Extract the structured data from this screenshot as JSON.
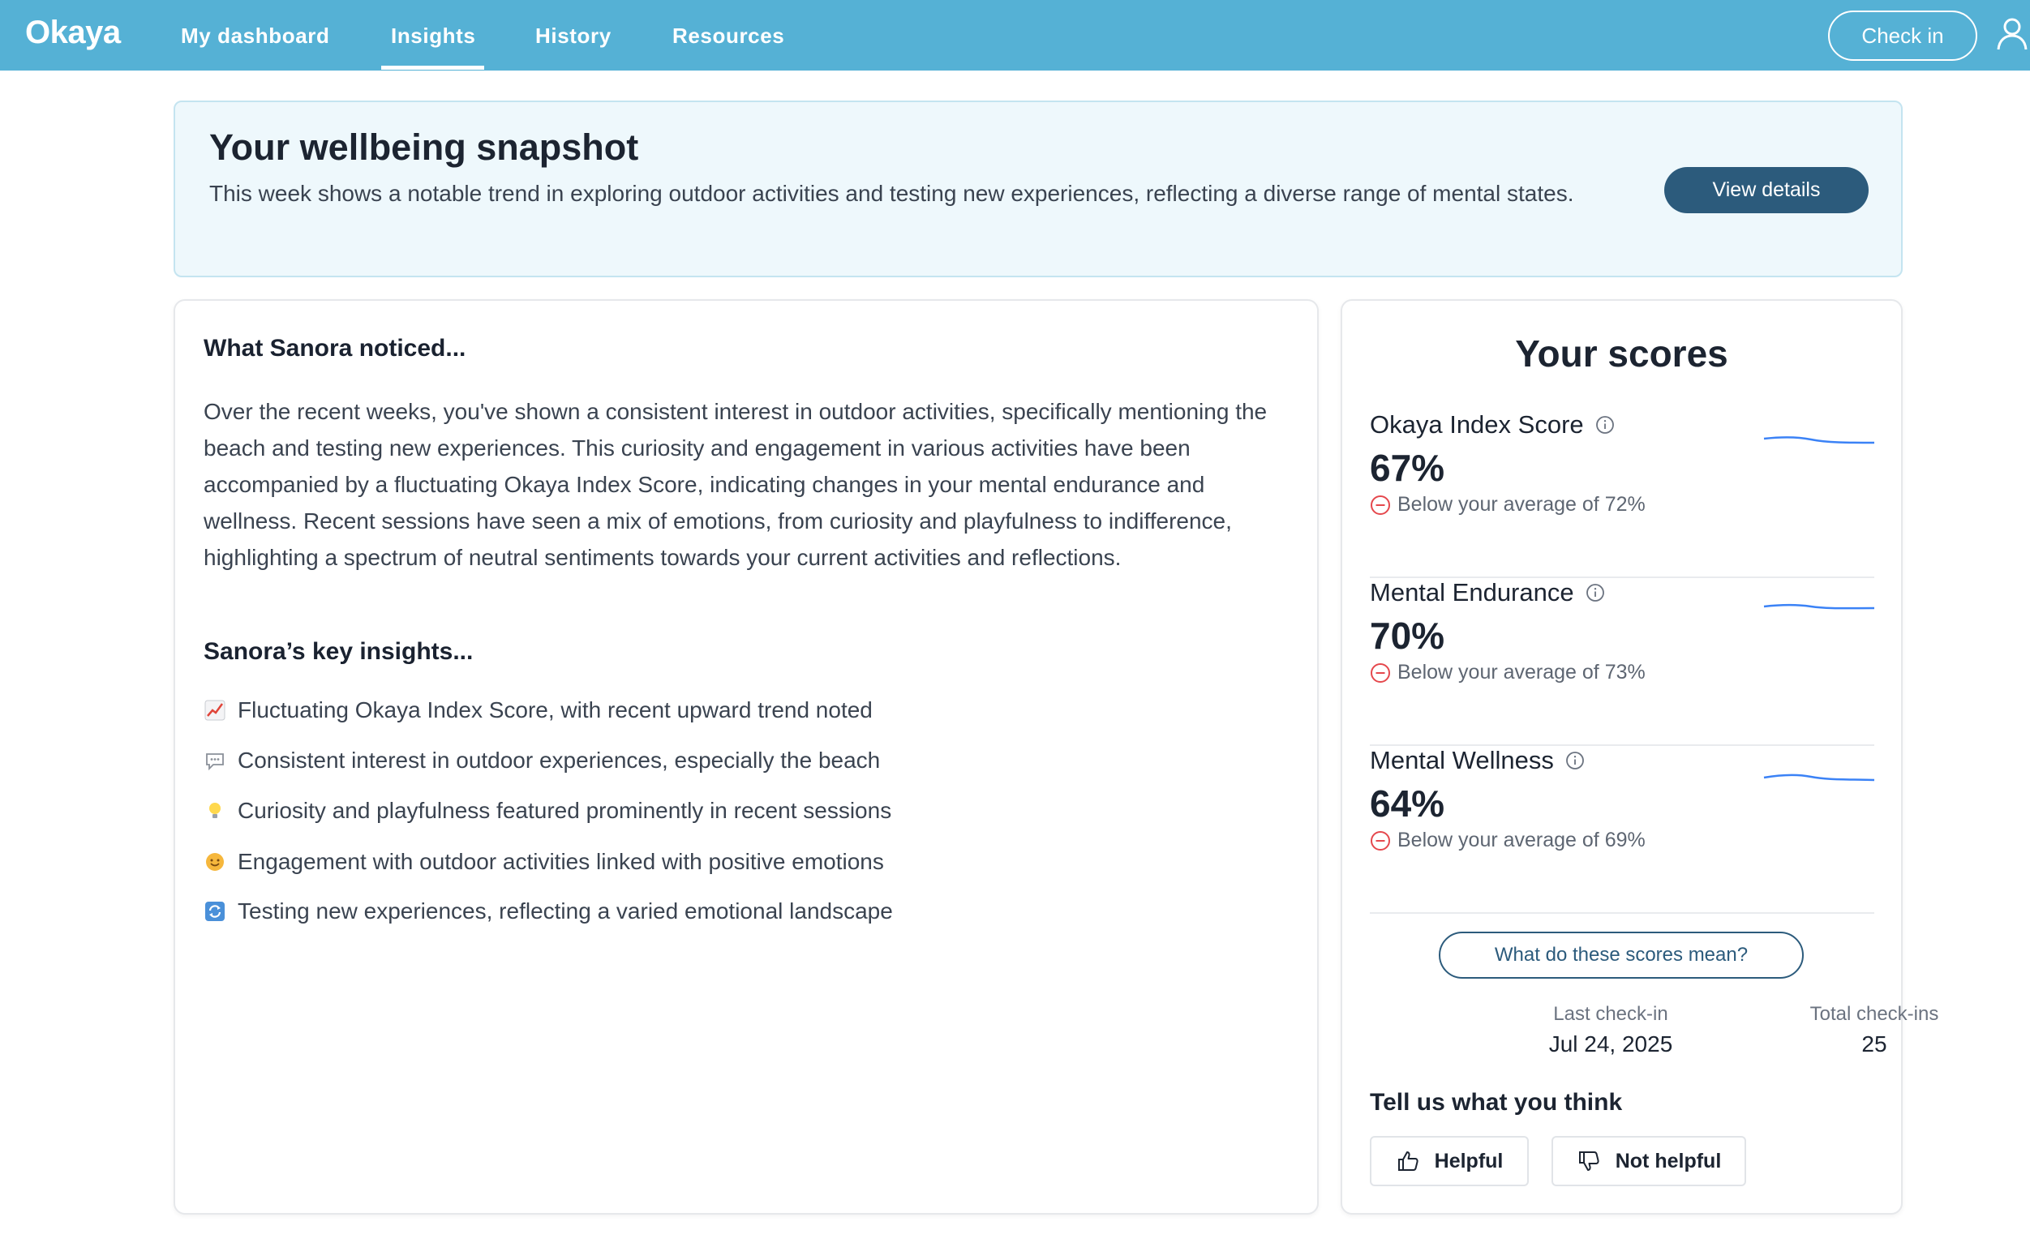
{
  "nav": {
    "logo": "Okaya",
    "links": [
      "My dashboard",
      "Insights",
      "History",
      "Resources"
    ],
    "active": "Insights",
    "checkin_label": "Check in",
    "user_icon": "user-icon"
  },
  "snapshot": {
    "title": "Your wellbeing snapshot",
    "body": "This week shows a notable trend in exploring outdoor activities and testing new experiences, reflecting a diverse range of mental states.",
    "button": "View details"
  },
  "noticed": {
    "title": "What Sanora noticed...",
    "body": "Over the recent weeks, you've shown a consistent interest in outdoor activities, specifically mentioning the beach and testing new experiences. This curiosity and engagement in various activities have been accompanied by a fluctuating Okaya Index Score, indicating changes in your mental endurance and wellness. Recent sessions have seen a mix of emotions, from curiosity and playfulness to indifference, highlighting a spectrum of neutral sentiments towards your current activities and reflections."
  },
  "insights": {
    "title": "Sanora’s key insights...",
    "items": [
      {
        "icon": "chart-increasing-icon",
        "text": "Fluctuating Okaya Index Score, with recent upward trend noted"
      },
      {
        "icon": "speech-bubble-icon",
        "text": "Consistent interest in outdoor experiences, especially the beach"
      },
      {
        "icon": "light-bulb-icon",
        "text": "Curiosity and playfulness featured prominently in recent sessions"
      },
      {
        "icon": "smiling-face-icon",
        "text": "Engagement with outdoor activities linked with positive emotions"
      },
      {
        "icon": "cycle-arrows-icon",
        "text": "Testing new experiences, reflecting a varied emotional landscape"
      }
    ]
  },
  "scores": {
    "title": "Your scores",
    "items": [
      {
        "label": "Okaya Index Score",
        "value": "67%",
        "note": "Below your average of 72%"
      },
      {
        "label": "Mental Endurance",
        "value": "70%",
        "note": "Below your average of 73%"
      },
      {
        "label": "Mental Wellness",
        "value": "64%",
        "note": "Below your average of 69%"
      }
    ],
    "meaning_button": "What do these scores mean?",
    "last_checkin_label": "Last check-in",
    "last_checkin_value": "Jul 24, 2025",
    "total_label": "Total check-ins",
    "total_value": "25",
    "accent_color": "#3b82f6",
    "negative_color": "#e5484d"
  },
  "feedback": {
    "title": "Tell us what you think",
    "helpful": "Helpful",
    "not_helpful": "Not helpful"
  }
}
